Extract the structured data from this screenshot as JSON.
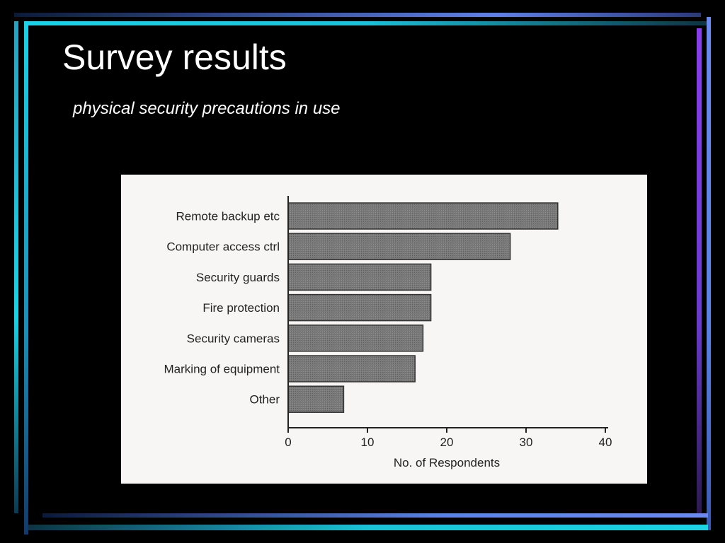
{
  "slide": {
    "title": "Survey results",
    "subtitle": "physical security precautions in use"
  },
  "theme": {
    "background": "#000000",
    "accent_cyan": "#19d3e6",
    "accent_blue": "#5a82e6",
    "accent_purple": "#8a3df0",
    "panel_background": "#f7f6f4",
    "bar_fill": "#777777"
  },
  "chart_data": {
    "type": "bar",
    "orientation": "horizontal",
    "categories": [
      "Remote backup etc",
      "Computer access ctrl",
      "Security guards",
      "Fire protection",
      "Security cameras",
      "Marking of equipment",
      "Other"
    ],
    "values": [
      34,
      28,
      18,
      18,
      17,
      16,
      7
    ],
    "xlabel": "No. of Respondents",
    "ylabel": "",
    "xlim": [
      0,
      40
    ],
    "xticks": [
      "0",
      "10",
      "20",
      "30",
      "40"
    ],
    "grid": false
  }
}
